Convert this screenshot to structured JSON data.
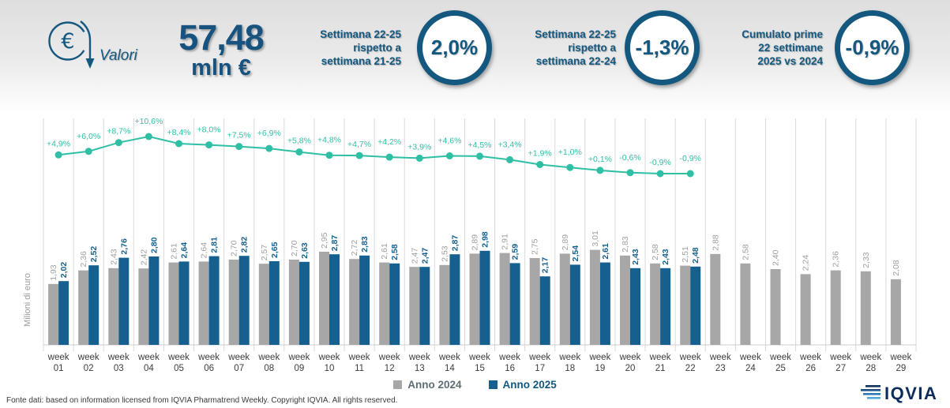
{
  "header": {
    "icon_label": "Valori",
    "euro_symbol": "€",
    "total_value": "57,48",
    "total_unit": "mln €",
    "kpis": [
      {
        "label_lines": [
          "Settimana 22-25",
          "rispetto a",
          "settimana 21-25"
        ],
        "value": "2,0%"
      },
      {
        "label_lines": [
          "Settimana 22-25",
          "rispetto a",
          "settimana 22-24"
        ],
        "value": "-1,3%"
      },
      {
        "label_lines": [
          "Cumulato prime",
          "22 settimane",
          "2025 vs 2024"
        ],
        "value": "-0,9%"
      }
    ]
  },
  "chart_data": {
    "type": "bar",
    "title": "",
    "ylabel": "Milioni di euro",
    "xlabel": "",
    "x_prefix": "week",
    "categories": [
      "01",
      "02",
      "03",
      "04",
      "05",
      "06",
      "07",
      "08",
      "09",
      "10",
      "11",
      "12",
      "13",
      "14",
      "15",
      "16",
      "17",
      "18",
      "19",
      "20",
      "21",
      "22",
      "23",
      "24",
      "25",
      "26",
      "27",
      "28",
      "29"
    ],
    "decimal_separator": ",",
    "ylim": [
      0,
      3.5
    ],
    "grid": "vertical",
    "legend_position": "bottom",
    "series": [
      {
        "name": "Anno 2024",
        "color": "#A7A7A7",
        "label_color": "#9E9E9E",
        "values": [
          1.93,
          2.36,
          2.43,
          2.42,
          2.61,
          2.64,
          2.7,
          2.57,
          2.7,
          2.95,
          2.72,
          2.61,
          2.47,
          2.53,
          2.89,
          2.91,
          2.75,
          2.89,
          3.01,
          2.83,
          2.58,
          2.51,
          2.88,
          2.58,
          2.4,
          2.24,
          2.36,
          2.33,
          2.08
        ]
      },
      {
        "name": "Anno 2025",
        "color": "#15608F",
        "label_color": "#15608F",
        "values": [
          2.02,
          2.52,
          2.76,
          2.8,
          2.64,
          2.81,
          2.82,
          2.65,
          2.63,
          2.87,
          2.83,
          2.58,
          2.47,
          2.87,
          2.98,
          2.59,
          2.17,
          2.54,
          2.61,
          2.43,
          2.43,
          2.48
        ]
      }
    ],
    "line_series": {
      "color": "#2EBFA5",
      "values": [
        4.9,
        6.0,
        8.7,
        10.6,
        8.4,
        8.0,
        7.5,
        6.9,
        5.8,
        4.8,
        4.7,
        4.2,
        3.9,
        4.6,
        4.5,
        3.4,
        1.9,
        1.0,
        0.1,
        -0.6,
        -0.9,
        -0.9
      ],
      "labels": [
        "+4,9%",
        "+6,0%",
        "+8,7%",
        "+10,6%",
        "+8,4%",
        "+8,0%",
        "+7,5%",
        "+6,9%",
        "+5,8%",
        "+4,8%",
        "+4,7%",
        "+4,2%",
        "+3,9%",
        "+4,6%",
        "+4,5%",
        "+3,4%",
        "+1,9%",
        "+1,0%",
        "+0,1%",
        "-0,6%",
        "-0,9%",
        "-0,9%"
      ]
    }
  },
  "footer": {
    "source": "Fonte dati: based on information licensed from IQVIA Pharmatrend Weekly. Copyright IQVIA. All rights reserved.",
    "logo": "IQVIA"
  },
  "colors": {
    "accent_dark_blue": "#14587F",
    "bar_2024": "#A7A7A7",
    "bar_2025": "#15608F",
    "line_teal": "#2EBFA5",
    "gridline": "#D9D9D9"
  }
}
